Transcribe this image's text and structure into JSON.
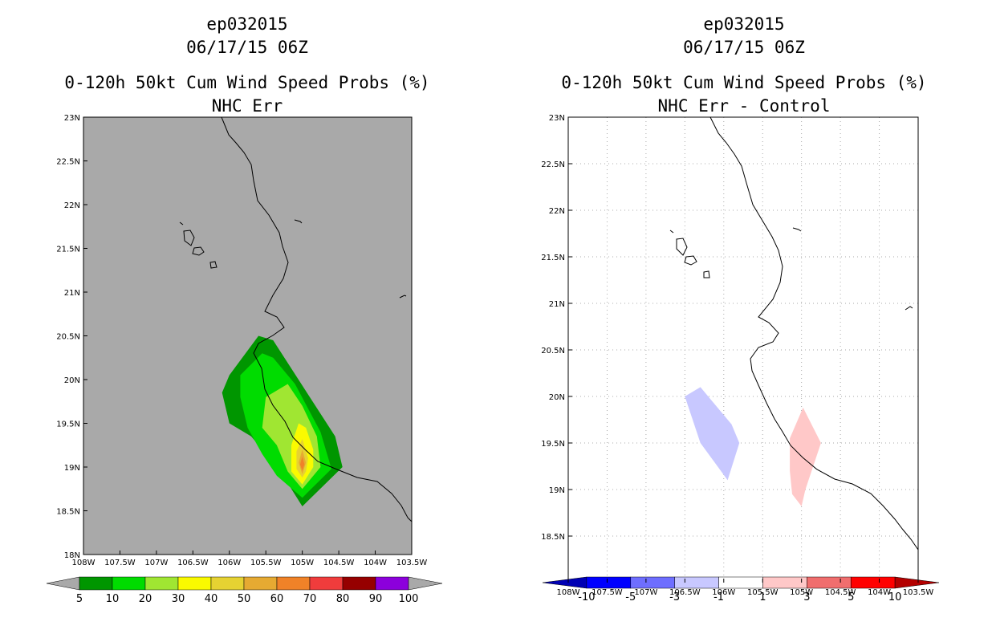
{
  "chart_data": [
    {
      "type": "contour",
      "title_lines": [
        "ep032015",
        "06/17/15 06Z",
        "0-120h 50kt Cum Wind Speed Probs (%)",
        "NHC Err"
      ],
      "xlabel": "",
      "ylabel": "",
      "xlim": [
        -108,
        -103.5
      ],
      "ylim": [
        18,
        23
      ],
      "x_ticks": [
        "108W",
        "107.5W",
        "107W",
        "106.5W",
        "106W",
        "105.5W",
        "105W",
        "104.5W",
        "104W",
        "103.5W"
      ],
      "y_ticks": [
        "18N",
        "18.5N",
        "19N",
        "19.5N",
        "20N",
        "20.5N",
        "21N",
        "21.5N",
        "22N",
        "22.5N",
        "23N"
      ],
      "grid": false,
      "background_color": "#a9a9a9",
      "colorbar": {
        "labels": [
          "5",
          "10",
          "20",
          "30",
          "40",
          "50",
          "60",
          "70",
          "80",
          "90",
          "100"
        ],
        "colors": [
          "#009600",
          "#00dc00",
          "#a0e632",
          "#fafa00",
          "#e6d232",
          "#e6aa32",
          "#f08228",
          "#f03c3c",
          "#960000",
          "#8c00dc"
        ],
        "end_color": "#a9a9a9"
      },
      "contours": [
        {
          "level": "5-10",
          "color": "#009600",
          "points": [
            [
              -106,
              20.05
            ],
            [
              -105.6,
              20.5
            ],
            [
              -105.4,
              20.45
            ],
            [
              -104.55,
              19.35
            ],
            [
              -104.45,
              19.0
            ],
            [
              -105.0,
              18.55
            ],
            [
              -105.3,
              18.95
            ],
            [
              -105.7,
              19.35
            ],
            [
              -106,
              19.5
            ],
            [
              -106.1,
              19.85
            ]
          ]
        },
        {
          "level": "10-20",
          "color": "#00dc00",
          "points": [
            [
              -105.85,
              20.05
            ],
            [
              -105.55,
              20.3
            ],
            [
              -105.4,
              20.25
            ],
            [
              -105.1,
              19.95
            ],
            [
              -104.75,
              19.4
            ],
            [
              -104.6,
              18.98
            ],
            [
              -105.0,
              18.65
            ],
            [
              -105.35,
              18.9
            ],
            [
              -105.55,
              19.15
            ],
            [
              -105.75,
              19.45
            ],
            [
              -105.85,
              19.8
            ]
          ]
        },
        {
          "level": "20-30",
          "color": "#a0e632",
          "points": [
            [
              -105.5,
              19.8
            ],
            [
              -105.2,
              19.95
            ],
            [
              -105.0,
              19.7
            ],
            [
              -104.8,
              19.35
            ],
            [
              -104.75,
              19.0
            ],
            [
              -105.0,
              18.75
            ],
            [
              -105.2,
              18.95
            ],
            [
              -105.35,
              19.25
            ],
            [
              -105.55,
              19.45
            ]
          ]
        },
        {
          "level": "30-40",
          "color": "#fafa00",
          "points": [
            [
              -105.05,
              19.5
            ],
            [
              -104.95,
              19.45
            ],
            [
              -104.85,
              19.2
            ],
            [
              -104.85,
              19.0
            ],
            [
              -105.0,
              18.8
            ],
            [
              -105.15,
              18.95
            ],
            [
              -105.15,
              19.25
            ]
          ]
        },
        {
          "level": "40-50",
          "color": "#e6d232",
          "points": [
            [
              -105.0,
              19.32
            ],
            [
              -104.92,
              19.1
            ],
            [
              -104.95,
              18.95
            ],
            [
              -105.0,
              18.88
            ],
            [
              -105.08,
              18.98
            ],
            [
              -105.08,
              19.18
            ]
          ]
        },
        {
          "level": "50-60",
          "color": "#e6aa32",
          "points": [
            [
              -105.0,
              19.2
            ],
            [
              -104.95,
              19.05
            ],
            [
              -105.0,
              18.92
            ],
            [
              -105.05,
              19.05
            ]
          ]
        },
        {
          "level": "60-70",
          "color": "#f08228",
          "points": [
            [
              -105.0,
              19.12
            ],
            [
              -104.97,
              19.03
            ],
            [
              -105.0,
              18.96
            ],
            [
              -105.03,
              19.03
            ]
          ]
        }
      ]
    },
    {
      "type": "contour",
      "title_lines": [
        "ep032015",
        "06/17/15 06Z",
        "0-120h 50kt Cum Wind Speed Probs (%)",
        "NHC Err - Control"
      ],
      "xlabel": "",
      "ylabel": "",
      "xlim": [
        -108,
        -103.5
      ],
      "ylim": [
        18,
        23
      ],
      "x_ticks": [
        "108W",
        "107.5W",
        "107W",
        "106.5W",
        "106W",
        "105.5W",
        "105W",
        "104.5W",
        "104W",
        "103.5W"
      ],
      "y_ticks": [
        "18.5N",
        "19N",
        "19.5N",
        "20N",
        "20.5N",
        "21N",
        "21.5N",
        "22N",
        "22.5N",
        "23N"
      ],
      "grid": true,
      "background_color": "#ffffff",
      "colorbar": {
        "labels": [
          "-10",
          "-5",
          "-3",
          "-1",
          "1",
          "3",
          "5",
          "10"
        ],
        "colors": [
          "#0000b4",
          "#0000ff",
          "#6e6eff",
          "#c8c8ff",
          "#ffffff",
          "#ffc8c8",
          "#f06e6e",
          "#ff0000",
          "#b40000"
        ],
        "end_left_color": "#00008c",
        "end_right_color": "#8c0000"
      },
      "contours": [
        {
          "level": "-3 to -1",
          "color": "#c8c8ff",
          "points": [
            [
              -106.5,
              20.0
            ],
            [
              -106.3,
              20.1
            ],
            [
              -105.9,
              19.7
            ],
            [
              -105.8,
              19.5
            ],
            [
              -105.95,
              19.1
            ],
            [
              -106.3,
              19.5
            ]
          ]
        },
        {
          "level": "1 to 3",
          "color": "#ffc8c8",
          "points": [
            [
              -105.15,
              19.55
            ],
            [
              -104.98,
              19.88
            ],
            [
              -104.75,
              19.5
            ],
            [
              -104.95,
              19.0
            ],
            [
              -105.0,
              18.82
            ],
            [
              -105.12,
              18.95
            ],
            [
              -105.15,
              19.2
            ]
          ]
        }
      ]
    }
  ]
}
